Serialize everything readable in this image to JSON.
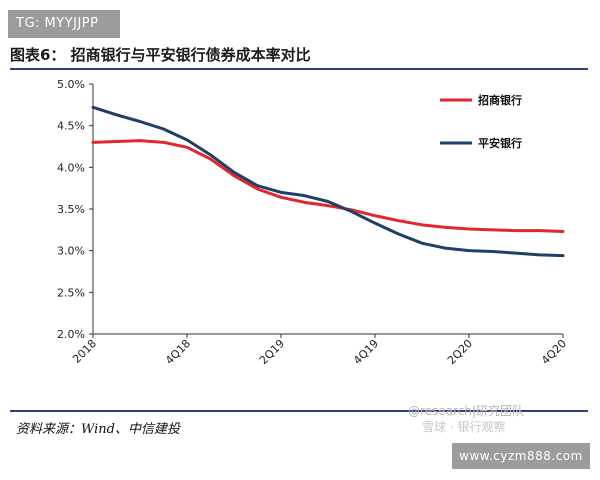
{
  "badge": {
    "label": "TG: MYYJJPP"
  },
  "figure": {
    "title": "图表6：  招商银行与平安银行债券成本率对比"
  },
  "source": {
    "text": "资料来源：Wind、中信建投"
  },
  "watermarks": {
    "line1": "@research|研究团队",
    "line2": "雪球 · 银行观察"
  },
  "site_badge": {
    "label": "www.cyzm888.com"
  },
  "colors": {
    "cmb": "#e3262b",
    "pingan": "#1f3f66",
    "axis": "#333333",
    "rule": "#2b3f7f"
  },
  "chart_data": {
    "type": "line",
    "title": "招商银行与平安银行债券成本率对比",
    "xlabel": "",
    "ylabel": "",
    "categories": [
      "2018",
      "4Q18",
      "2Q19",
      "4Q19",
      "2Q20",
      "4Q20"
    ],
    "x": [
      0,
      0.5,
      1,
      1.5,
      2,
      2.5,
      3,
      3.5,
      4,
      4.5,
      5,
      5.5,
      6,
      6.5,
      7,
      7.5,
      8,
      8.5,
      9,
      9.5,
      10
    ],
    "ylim": [
      2.0,
      5.0
    ],
    "yticks": [
      "2.0%",
      "2.5%",
      "3.0%",
      "3.5%",
      "4.0%",
      "4.5%",
      "5.0%"
    ],
    "legend_position": "top-right",
    "series": [
      {
        "name": "招商银行",
        "color": "#e3262b",
        "values": [
          4.3,
          4.31,
          4.32,
          4.3,
          4.24,
          4.1,
          3.9,
          3.74,
          3.64,
          3.58,
          3.54,
          3.49,
          3.42,
          3.36,
          3.31,
          3.28,
          3.26,
          3.25,
          3.24,
          3.24,
          3.23
        ]
      },
      {
        "name": "平安银行",
        "color": "#1f3f66",
        "values": [
          4.72,
          4.63,
          4.55,
          4.46,
          4.33,
          4.15,
          3.94,
          3.78,
          3.7,
          3.66,
          3.59,
          3.47,
          3.33,
          3.2,
          3.09,
          3.03,
          3.0,
          2.99,
          2.97,
          2.95,
          2.94
        ]
      }
    ]
  }
}
